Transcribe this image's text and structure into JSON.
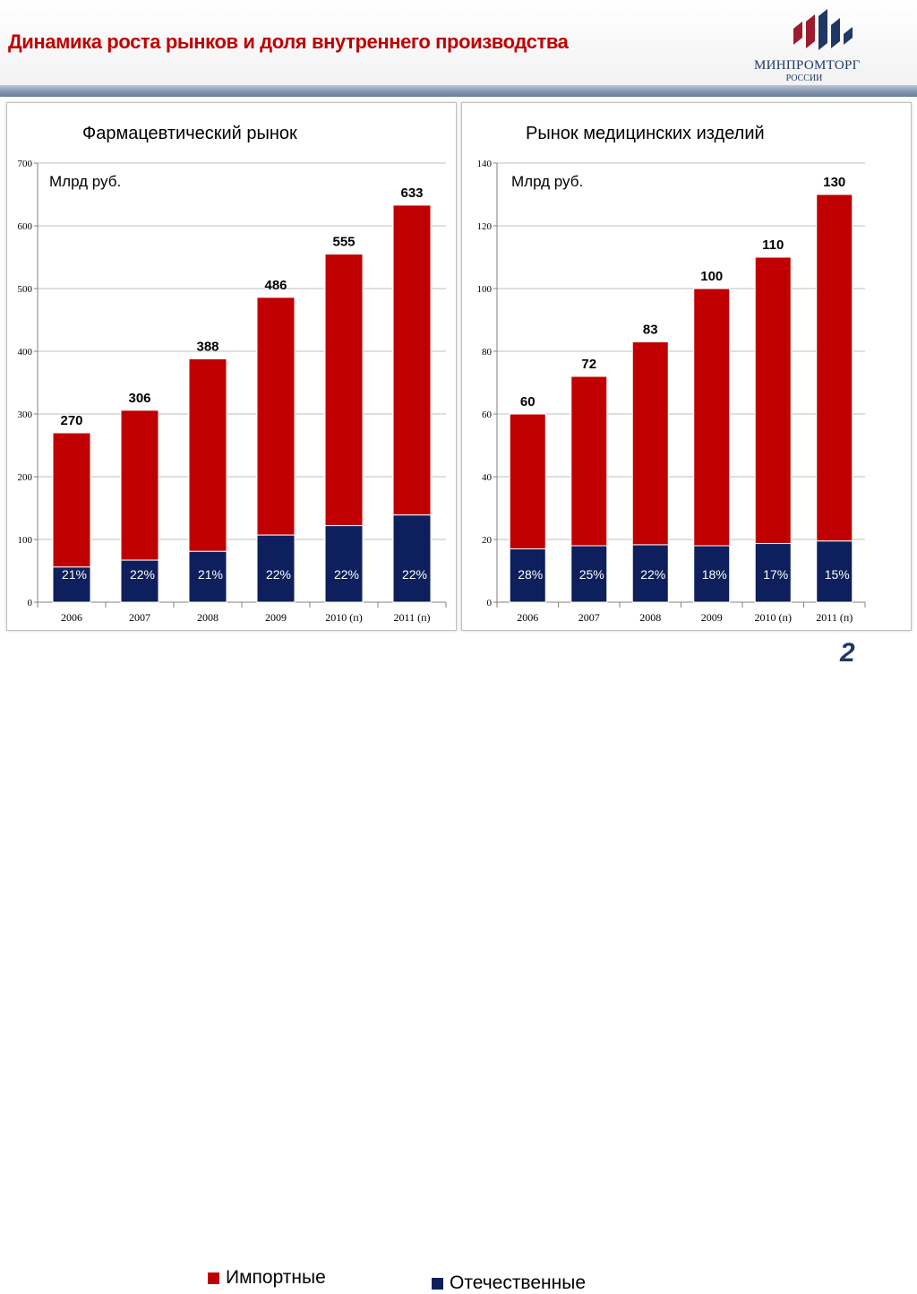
{
  "page": {
    "title": "Динамика роста рынков и доля внутреннего производства",
    "logo": {
      "main": "МИНПРОМТОРГ",
      "sub": "РОССИИ"
    },
    "slide_number": "2"
  },
  "legend": {
    "import": {
      "label": "Импортные",
      "color": "#c00000"
    },
    "domestic": {
      "label": "Отечественные",
      "color": "#0d1f5c"
    }
  },
  "chart_data": [
    {
      "type": "bar",
      "stacked": true,
      "title": "Фармацевтический рынок",
      "unit_label": "Млрд руб.",
      "categories": [
        "2006",
        "2007",
        "2008",
        "2009",
        "2010 (п)",
        "2011 (п)"
      ],
      "totals": [
        270,
        306,
        388,
        486,
        555,
        633
      ],
      "domestic_values": [
        56,
        67,
        81,
        107,
        122,
        139
      ],
      "domestic_share_labels": [
        "21%",
        "22%",
        "21%",
        "22%",
        "22%",
        "22%"
      ],
      "series": [
        {
          "name": "Отечественные",
          "values": [
            56,
            67,
            81,
            107,
            122,
            139
          ]
        },
        {
          "name": "Импортные",
          "values": [
            214,
            239,
            307,
            379,
            433,
            494
          ]
        }
      ],
      "ylim": [
        0,
        700
      ],
      "yticks": [
        0,
        100,
        200,
        300,
        400,
        500,
        600,
        700
      ],
      "grid": true
    },
    {
      "type": "bar",
      "stacked": true,
      "title": "Рынок медицинских изделий",
      "unit_label": "Млрд руб.",
      "categories": [
        "2006",
        "2007",
        "2008",
        "2009",
        "2010 (п)",
        "2011 (п)"
      ],
      "totals": [
        60,
        72,
        83,
        100,
        110,
        130
      ],
      "domestic_values": [
        17,
        18,
        18.3,
        18,
        18.7,
        19.5
      ],
      "domestic_share_labels": [
        "28%",
        "25%",
        "22%",
        "18%",
        "17%",
        "15%"
      ],
      "series": [
        {
          "name": "Отечественные",
          "values": [
            17,
            18,
            18.3,
            18,
            18.7,
            19.5
          ]
        },
        {
          "name": "Импортные",
          "values": [
            43,
            54,
            64.7,
            82,
            91.3,
            110.5
          ]
        }
      ],
      "ylim": [
        0,
        140
      ],
      "yticks": [
        0,
        20,
        40,
        60,
        80,
        100,
        120,
        140
      ],
      "grid": true
    }
  ]
}
